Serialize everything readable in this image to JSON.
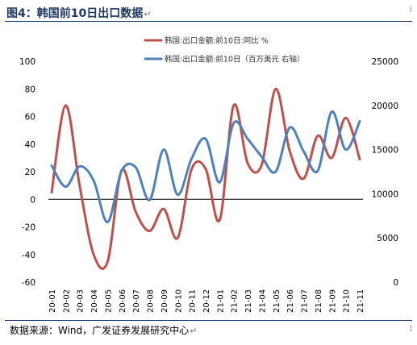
{
  "header": {
    "title": "图4：韩国前10日出口数据",
    "return_mark": "↵"
  },
  "source": {
    "text": "数据来源：Wind，广发证券发展研究中心",
    "return_mark": "↵"
  },
  "colors": {
    "series_pct": "#c0504d",
    "series_usd": "#4f81bd",
    "title_color": "#1f3864"
  },
  "chart_data": {
    "type": "line",
    "categories": [
      "20-01",
      "20-02",
      "20-03",
      "20-04",
      "20-05",
      "20-06",
      "20-07",
      "20-08",
      "20-09",
      "20-10",
      "20-11",
      "20-12",
      "21-01",
      "21-02",
      "21-03",
      "21-04",
      "21-05",
      "21-06",
      "21-07",
      "21-08",
      "21-09",
      "21-10",
      "21-11"
    ],
    "series": [
      {
        "name": "韩国:出口金额:前10日:同比 %",
        "axis": "left",
        "color": "#c0504d",
        "values": [
          5,
          68,
          10,
          -40,
          -45,
          21,
          -9,
          -23,
          -7,
          -28,
          22,
          22,
          -15,
          68,
          26,
          25,
          80,
          35,
          15,
          46,
          30,
          59,
          29
        ]
      },
      {
        "name": "韩国:出口金额:前10日（百万美元 右轴）",
        "axis": "right",
        "color": "#4f81bd",
        "values": [
          13200,
          10800,
          13100,
          11500,
          6800,
          12600,
          13000,
          9300,
          15000,
          9900,
          14000,
          16200,
          11300,
          18000,
          16200,
          14200,
          12500,
          17500,
          14800,
          12600,
          19300,
          15000,
          18200
        ]
      }
    ],
    "y_left": {
      "min": -60,
      "max": 100,
      "ticks": [
        -60,
        -40,
        -20,
        0,
        20,
        40,
        60,
        80,
        100
      ]
    },
    "y_right": {
      "min": 0,
      "max": 25000,
      "ticks": [
        0,
        5000,
        10000,
        15000,
        20000,
        25000
      ]
    },
    "legend_position": "top",
    "grid": false
  }
}
